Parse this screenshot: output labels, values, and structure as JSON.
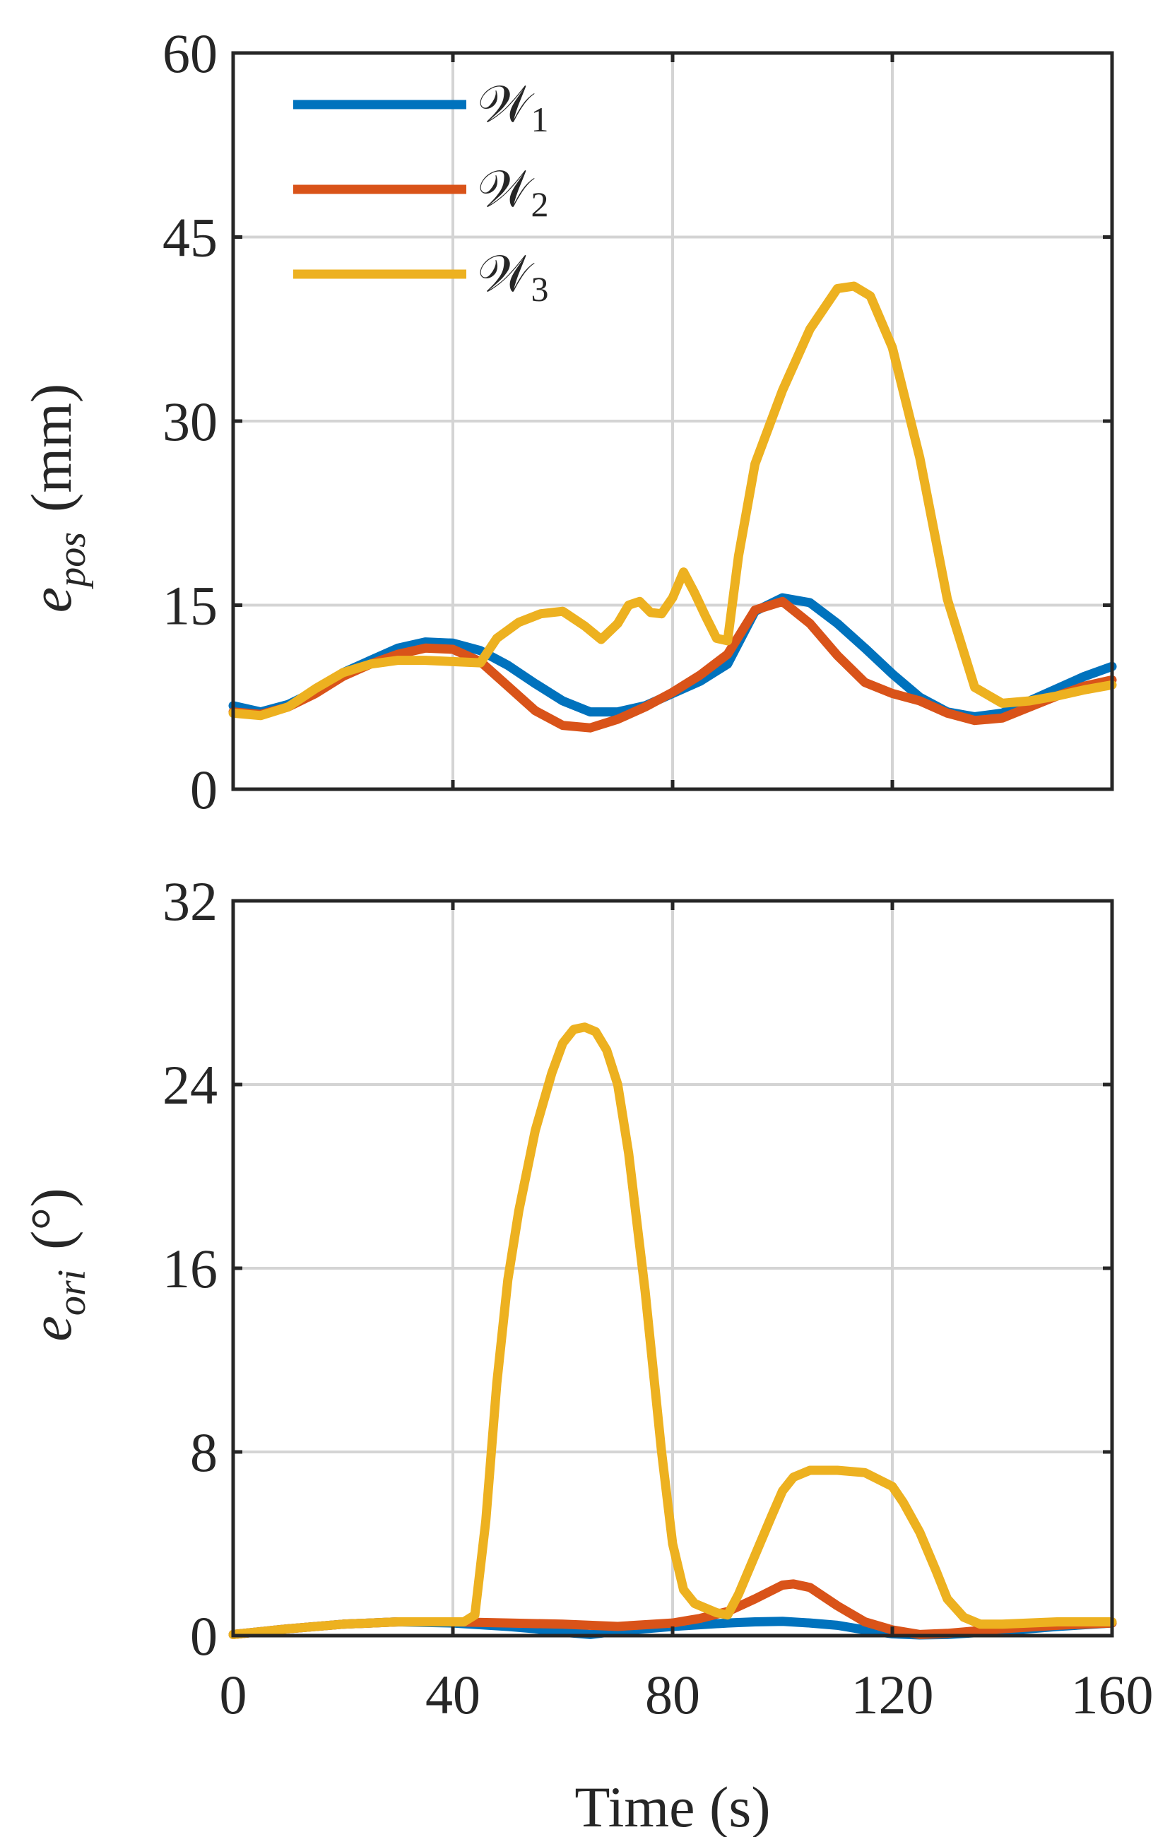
{
  "figure": {
    "xlabel": "Time (s)",
    "legend": {
      "location": "top-left",
      "entries": [
        {
          "symbol": "𝒲",
          "sub": "1",
          "color": "#0072BD"
        },
        {
          "symbol": "𝒲",
          "sub": "2",
          "color": "#D95319"
        },
        {
          "symbol": "𝒲",
          "sub": "3",
          "color": "#EDB120"
        }
      ]
    }
  },
  "chart_data": [
    {
      "type": "line",
      "ylabel_main": "e",
      "ylabel_sub": "pos",
      "ylabel_unit": "(mm)",
      "xlim": [
        0,
        160
      ],
      "ylim": [
        0,
        60
      ],
      "xticks": [
        0,
        40,
        80,
        120,
        160
      ],
      "yticks": [
        0,
        15,
        30,
        45,
        60
      ],
      "grid": true,
      "show_xtick_labels": false,
      "series": [
        {
          "name": "𝒲1",
          "color": "#0072BD",
          "x": [
            0,
            5,
            10,
            15,
            20,
            25,
            30,
            35,
            40,
            45,
            50,
            55,
            60,
            65,
            70,
            75,
            80,
            85,
            90,
            95,
            100,
            105,
            110,
            115,
            120,
            125,
            130,
            135,
            140,
            145,
            150,
            155,
            160
          ],
          "y": [
            6.8,
            6.3,
            6.9,
            8.0,
            9.5,
            10.5,
            11.5,
            12.0,
            11.9,
            11.3,
            10.1,
            8.6,
            7.2,
            6.3,
            6.3,
            6.8,
            7.8,
            8.8,
            10.2,
            14.5,
            15.6,
            15.2,
            13.5,
            11.5,
            9.4,
            7.5,
            6.3,
            5.9,
            6.2,
            7.2,
            8.2,
            9.2,
            10.0
          ]
        },
        {
          "name": "𝒲2",
          "color": "#D95319",
          "x": [
            0,
            5,
            10,
            15,
            20,
            25,
            30,
            35,
            40,
            45,
            50,
            55,
            60,
            65,
            70,
            75,
            80,
            85,
            90,
            95,
            100,
            105,
            110,
            115,
            120,
            125,
            130,
            135,
            140,
            145,
            150,
            155,
            160
          ],
          "y": [
            6.3,
            6.1,
            6.7,
            7.8,
            9.2,
            10.2,
            11.0,
            11.5,
            11.4,
            10.4,
            8.4,
            6.4,
            5.2,
            5.0,
            5.7,
            6.7,
            7.9,
            9.3,
            11.0,
            14.6,
            15.3,
            13.5,
            10.9,
            8.7,
            7.8,
            7.2,
            6.2,
            5.6,
            5.8,
            6.7,
            7.6,
            8.4,
            8.9
          ]
        },
        {
          "name": "𝒲3",
          "color": "#EDB120",
          "x": [
            0,
            5,
            10,
            15,
            20,
            25,
            30,
            35,
            40,
            45,
            48,
            52,
            56,
            60,
            64,
            67,
            70,
            72,
            74,
            76,
            78,
            80,
            82,
            84,
            86,
            88,
            90,
            92,
            95,
            100,
            105,
            110,
            113,
            116,
            120,
            125,
            130,
            135,
            140,
            145,
            150,
            155,
            160
          ],
          "y": [
            6.2,
            6.0,
            6.7,
            8.2,
            9.5,
            10.2,
            10.5,
            10.5,
            10.4,
            10.3,
            12.3,
            13.6,
            14.3,
            14.5,
            13.3,
            12.2,
            13.5,
            15.0,
            15.3,
            14.4,
            14.3,
            15.6,
            17.7,
            16.0,
            14.1,
            12.3,
            12.1,
            19.0,
            26.5,
            32.5,
            37.5,
            40.8,
            41.0,
            40.2,
            36.0,
            27.0,
            15.5,
            8.3,
            7.0,
            7.2,
            7.6,
            8.1,
            8.5
          ]
        }
      ]
    },
    {
      "type": "line",
      "ylabel_main": "e",
      "ylabel_sub": "ori",
      "ylabel_unit": "(°)",
      "xlim": [
        0,
        160
      ],
      "ylim": [
        0,
        32
      ],
      "xticks": [
        0,
        40,
        80,
        120,
        160
      ],
      "xtick_labels": [
        "0",
        "40",
        "80",
        "120",
        "160"
      ],
      "yticks": [
        0,
        8,
        16,
        24,
        32
      ],
      "grid": true,
      "show_xtick_labels": true,
      "series": [
        {
          "name": "𝒲1",
          "color": "#0072BD",
          "x": [
            0,
            10,
            20,
            30,
            40,
            50,
            55,
            60,
            65,
            70,
            80,
            90,
            95,
            100,
            105,
            110,
            115,
            120,
            125,
            130,
            140,
            150,
            160
          ],
          "y": [
            0.05,
            0.3,
            0.5,
            0.6,
            0.55,
            0.4,
            0.3,
            0.15,
            0.05,
            0.2,
            0.4,
            0.55,
            0.6,
            0.62,
            0.55,
            0.45,
            0.25,
            0.08,
            0.03,
            0.05,
            0.2,
            0.4,
            0.55
          ]
        },
        {
          "name": "𝒲2",
          "color": "#D95319",
          "x": [
            0,
            10,
            20,
            30,
            40,
            50,
            60,
            65,
            70,
            80,
            85,
            90,
            95,
            100,
            102,
            105,
            110,
            115,
            120,
            125,
            130,
            135,
            140,
            150,
            160
          ],
          "y": [
            0.05,
            0.3,
            0.5,
            0.6,
            0.6,
            0.55,
            0.5,
            0.45,
            0.4,
            0.55,
            0.75,
            1.05,
            1.6,
            2.2,
            2.25,
            2.1,
            1.3,
            0.6,
            0.25,
            0.05,
            0.1,
            0.2,
            0.3,
            0.45,
            0.55
          ]
        },
        {
          "name": "𝒲3",
          "color": "#EDB120",
          "x": [
            0,
            10,
            20,
            30,
            40,
            42,
            44,
            46,
            48,
            50,
            52,
            55,
            58,
            60,
            62,
            64,
            66,
            68,
            70,
            72,
            75,
            78,
            80,
            82,
            84,
            86,
            88,
            90,
            92,
            95,
            98,
            100,
            102,
            105,
            110,
            115,
            120,
            122,
            125,
            128,
            130,
            133,
            136,
            140,
            150,
            160
          ],
          "y": [
            0.05,
            0.3,
            0.5,
            0.6,
            0.6,
            0.6,
            0.9,
            5.0,
            11.0,
            15.5,
            18.5,
            22.0,
            24.5,
            25.8,
            26.4,
            26.5,
            26.3,
            25.5,
            24.0,
            21.0,
            15.0,
            8.0,
            4.0,
            2.0,
            1.4,
            1.2,
            1.0,
            0.9,
            1.8,
            3.5,
            5.2,
            6.3,
            6.9,
            7.2,
            7.2,
            7.1,
            6.5,
            5.8,
            4.5,
            2.8,
            1.6,
            0.8,
            0.5,
            0.5,
            0.6,
            0.6
          ]
        }
      ]
    }
  ]
}
